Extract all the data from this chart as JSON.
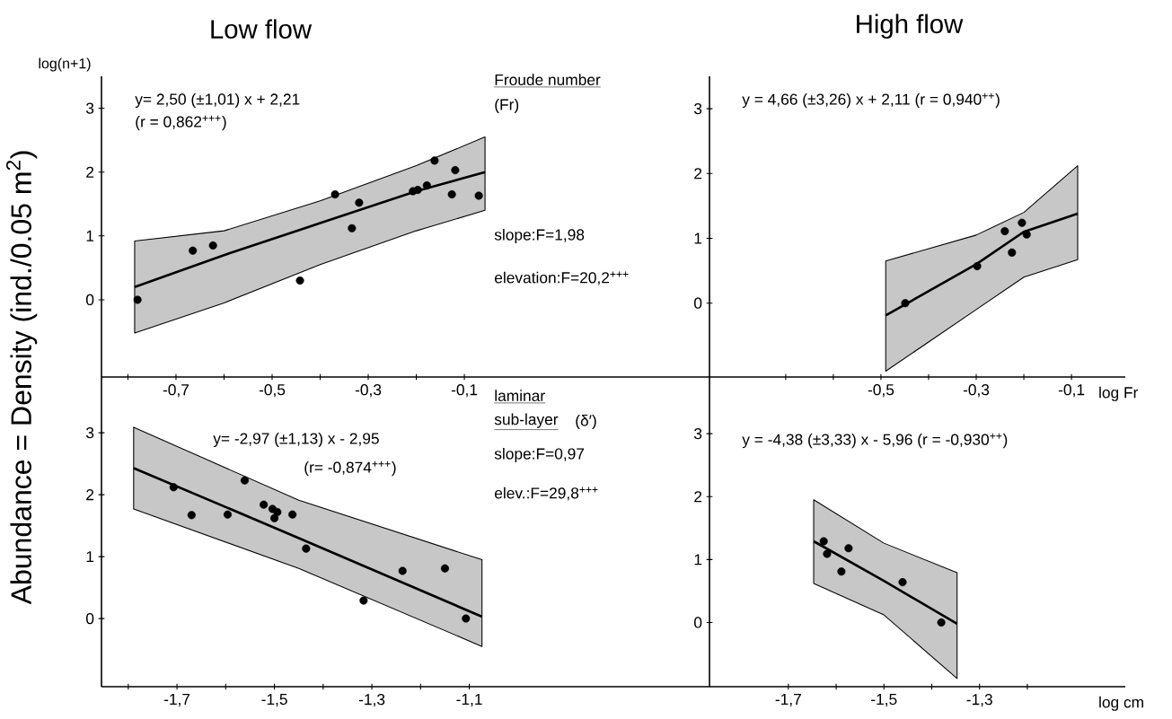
{
  "chart_data": [
    {
      "type": "scatter",
      "title": "Low flow",
      "ylabel": "log(n+1)",
      "xlim": [
        -0.855,
        0.41
      ],
      "ylim": [
        -1.21,
        3.5
      ],
      "xticks": [
        {
          "value": -0.8,
          "label": null
        },
        {
          "value": -0.7,
          "label": "-0,7"
        },
        {
          "value": -0.6,
          "label": null
        },
        {
          "value": -0.5,
          "label": "-0,5"
        },
        {
          "value": -0.4,
          "label": null
        },
        {
          "value": -0.3,
          "label": "-0,3"
        },
        {
          "value": -0.2,
          "label": null
        },
        {
          "value": -0.1,
          "label": "-0,1"
        }
      ],
      "yticks": [
        0,
        1,
        2,
        3
      ],
      "annotations": [
        "y= 2,50 (±1,01) x + 2,21",
        "(r = 0,862$^{+++}$)",
        "Froude number",
        "(Fr)",
        "slope:F=1,98",
        "elevation:F=20,2$^{+++}$"
      ],
      "series": [
        {
          "color": "#000000",
          "x": [
            -0.78,
            -0.665,
            -0.623,
            -0.442,
            -0.369,
            -0.319,
            -0.334,
            -0.207,
            -0.197,
            -0.178,
            -0.162,
            -0.119,
            -0.126,
            -0.07
          ],
          "values": [
            0.0,
            0.77,
            0.85,
            0.3,
            1.65,
            1.52,
            1.12,
            1.7,
            1.72,
            1.79,
            2.18,
            2.03,
            1.65,
            1.63
          ]
        },
        {
          "type": "line",
          "marker": "none",
          "color": "#000000",
          "x": [
            -0.786,
            -0.6,
            -0.4,
            -0.2,
            -0.057
          ],
          "values": [
            0.2,
            0.7,
            1.2,
            1.7,
            2.0
          ],
          "lower": [
            -0.52,
            -0.05,
            0.55,
            1.08,
            1.4
          ],
          "upper": [
            0.92,
            1.08,
            1.55,
            2.1,
            2.55
          ]
        }
      ]
    },
    {
      "type": "scatter",
      "title": "High flow",
      "xlabel": "log Fr",
      "xlim": [
        -0.86,
        0.013
      ],
      "ylim": [
        -1.14,
        3.5
      ],
      "xticks": [
        {
          "value": -0.7,
          "label": null
        },
        {
          "value": -0.6,
          "label": null
        },
        {
          "value": -0.5,
          "label": "-0,5"
        },
        {
          "value": -0.4,
          "label": null
        },
        {
          "value": -0.3,
          "label": "-0,3"
        },
        {
          "value": -0.2,
          "label": null
        },
        {
          "value": -0.1,
          "label": "-0,1"
        }
      ],
      "yticks": [
        0,
        1,
        2,
        3
      ],
      "annotations": [
        "y = 4,66 (±3,26) x + 2,11  (r = 0,940$^{++}$)"
      ],
      "series": [
        {
          "color": "#000000",
          "x": [
            -0.449,
            -0.298,
            -0.24,
            -0.225,
            -0.204,
            -0.194
          ],
          "values": [
            0.0,
            0.57,
            1.11,
            0.78,
            1.24,
            1.06
          ]
        },
        {
          "type": "line",
          "marker": "none",
          "color": "#000000",
          "x": [
            -0.49,
            -0.3,
            -0.2,
            -0.087
          ],
          "values": [
            -0.19,
            0.6,
            1.1,
            1.38
          ],
          "lower": [
            -1.05,
            -0.1,
            0.4,
            0.67
          ],
          "upper": [
            0.65,
            1.05,
            1.4,
            2.12
          ]
        }
      ]
    },
    {
      "type": "scatter",
      "ylabel": "Abundance = Density  (ind./0.05 m$^{2}$)",
      "xlim": [
        -1.855,
        -0.607
      ],
      "ylim": [
        -1.1,
        3.9
      ],
      "xticks": [
        {
          "value": -1.8,
          "label": null
        },
        {
          "value": -1.7,
          "label": "-1,7"
        },
        {
          "value": -1.6,
          "label": null
        },
        {
          "value": -1.5,
          "label": "-1,5"
        },
        {
          "value": -1.4,
          "label": null
        },
        {
          "value": -1.3,
          "label": "-1,3"
        },
        {
          "value": -1.2,
          "label": null
        },
        {
          "value": -1.1,
          "label": "-1,1"
        }
      ],
      "yticks": [
        0,
        1,
        2,
        3
      ],
      "annotations": [
        "y= -2,97 (±1,13) x - 2,95",
        "(r= -0,874$^{+++}$)",
        "laminar",
        "sub-layer",
        "(δ′)",
        "slope:F=0,97",
        "elev.:F=29,8$^{+++}$"
      ],
      "series": [
        {
          "color": "#000000",
          "x": [
            -1.707,
            -1.67,
            -1.596,
            -1.561,
            -1.522,
            -1.504,
            -1.494,
            -1.5,
            -1.463,
            -1.435,
            -1.317,
            -1.237,
            -1.15,
            -1.107
          ],
          "values": [
            2.12,
            1.67,
            1.68,
            2.23,
            1.84,
            1.77,
            1.72,
            1.62,
            1.68,
            1.13,
            0.29,
            0.77,
            0.81,
            0.0
          ]
        },
        {
          "type": "line",
          "marker": "none",
          "color": "#000000",
          "x": [
            -1.789,
            -1.45,
            -1.074
          ],
          "values": [
            2.43,
            1.3,
            0.03
          ],
          "lower": [
            1.77,
            0.81,
            -0.45
          ],
          "upper": [
            3.09,
            1.91,
            0.95
          ]
        }
      ]
    },
    {
      "type": "scatter",
      "xlabel": "log cm",
      "xlim": [
        -1.865,
        -0.995
      ],
      "ylim": [
        -1.02,
        3.9
      ],
      "xticks": [
        {
          "value": -1.7,
          "label": "-1,7"
        },
        {
          "value": -1.6,
          "label": null
        },
        {
          "value": -1.5,
          "label": "-1,5"
        },
        {
          "value": -1.4,
          "label": null
        },
        {
          "value": -1.3,
          "label": "-1,3"
        },
        {
          "value": -1.2,
          "label": null
        }
      ],
      "yticks": [
        0,
        1,
        2,
        3
      ],
      "annotations": [
        "y = -4,38 (±3,33) x - 5,96  (r = -0,930$^{++}$)"
      ],
      "series": [
        {
          "color": "#000000",
          "x": [
            -1.626,
            -1.619,
            -1.574,
            -1.589,
            -1.461,
            -1.38
          ],
          "values": [
            1.29,
            1.09,
            1.18,
            0.81,
            0.64,
            0.0
          ]
        },
        {
          "type": "line",
          "marker": "none",
          "color": "#000000",
          "x": [
            -1.647,
            -1.5,
            -1.347
          ],
          "values": [
            1.29,
            0.66,
            -0.02
          ],
          "lower": [
            0.62,
            0.12,
            -0.89
          ],
          "upper": [
            1.95,
            1.26,
            0.79
          ]
        }
      ]
    }
  ]
}
